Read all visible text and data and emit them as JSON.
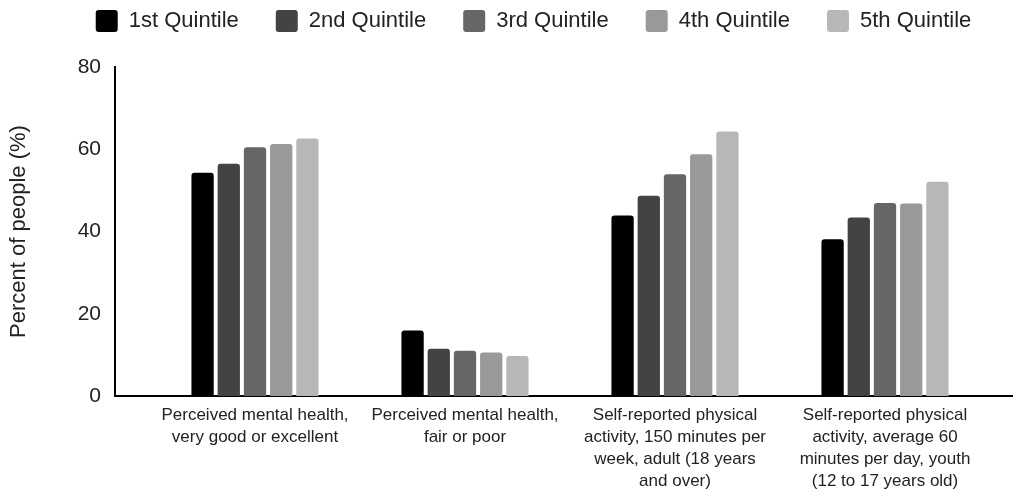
{
  "chart_data": {
    "type": "bar",
    "categories": [
      "Perceived mental health, very good or excellent",
      "Perceived mental health, fair or poor",
      "Self-reported physical activity, 150 minutes per week, adult (18 years and over)",
      "Self-reported physical activity, average 60 minutes per day, youth (12 to 17 years old)"
    ],
    "series": [
      {
        "name": "1st Quintile",
        "color": "#000000",
        "values": [
          54.3,
          15.9,
          43.9,
          38.1
        ]
      },
      {
        "name": "2nd Quintile",
        "color": "#434343",
        "values": [
          56.5,
          11.5,
          48.7,
          43.4
        ]
      },
      {
        "name": "3rd Quintile",
        "color": "#666666",
        "values": [
          60.5,
          11.0,
          53.9,
          46.9
        ]
      },
      {
        "name": "4th Quintile",
        "color": "#999999",
        "values": [
          61.3,
          10.6,
          58.8,
          46.8
        ]
      },
      {
        "name": "5th Quintile",
        "color": "#b7b7b7",
        "values": [
          62.6,
          9.7,
          64.3,
          52.1
        ]
      }
    ],
    "ylabel": "Percent of people (%)",
    "ylim": [
      0,
      80
    ],
    "yticks": [
      0,
      20,
      40,
      60,
      80
    ],
    "legend": "top"
  }
}
